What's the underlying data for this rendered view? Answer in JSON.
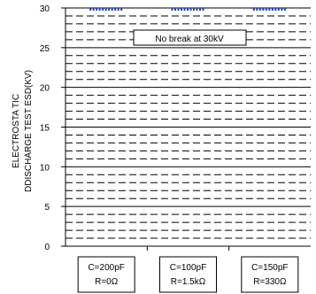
{
  "chart_data": {
    "type": "bar",
    "ylabel_lines": [
      "ELECTROSTA TIC",
      "DDISCHARGE TEST ESD(KV)"
    ],
    "ylim": [
      0,
      30
    ],
    "yticks": [
      0,
      5,
      10,
      15,
      20,
      25,
      30
    ],
    "grid": true,
    "categories": [
      [
        "C=200pF",
        "R=0Ω"
      ],
      [
        "C=100pF",
        "R=1.5kΩ"
      ],
      [
        "C=150pF",
        "R=330Ω"
      ]
    ],
    "values": [
      30,
      30,
      30
    ],
    "annotation": "No break at 30kV",
    "colors": {
      "bar_marker": "#1f3fbf",
      "grid": "#000000",
      "axis": "#000000"
    }
  }
}
